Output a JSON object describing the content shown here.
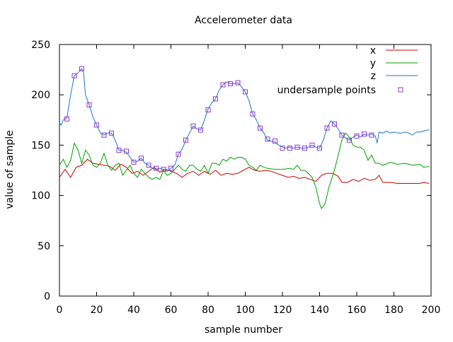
{
  "chart_data": {
    "type": "line",
    "title": "Accelerometer data",
    "xlabel": "sample number",
    "ylabel": "value of sample",
    "xlim": [
      0,
      200
    ],
    "ylim": [
      0,
      250
    ],
    "xticks": [
      "0",
      "20",
      "40",
      "60",
      "80",
      "100",
      "120",
      "140",
      "160",
      "180",
      "200"
    ],
    "yticks": [
      "0",
      "50",
      "100",
      "150",
      "200",
      "250"
    ],
    "grid": false,
    "legend_position": "top-right",
    "series": [
      {
        "name": "x",
        "kind": "line",
        "color": "#cc0000",
        "points": [
          [
            0,
            118
          ],
          [
            3,
            126
          ],
          [
            6,
            118
          ],
          [
            9,
            128
          ],
          [
            12,
            130
          ],
          [
            15,
            136
          ],
          [
            18,
            132
          ],
          [
            21,
            131
          ],
          [
            24,
            130
          ],
          [
            27,
            129
          ],
          [
            30,
            125
          ],
          [
            33,
            131
          ],
          [
            36,
            128
          ],
          [
            39,
            122
          ],
          [
            42,
            124
          ],
          [
            45,
            120
          ],
          [
            48,
            124
          ],
          [
            51,
            128
          ],
          [
            54,
            123
          ],
          [
            57,
            126
          ],
          [
            60,
            124
          ],
          [
            63,
            122
          ],
          [
            66,
            118
          ],
          [
            69,
            122
          ],
          [
            72,
            124
          ],
          [
            75,
            120
          ],
          [
            78,
            124
          ],
          [
            81,
            121
          ],
          [
            84,
            125
          ],
          [
            87,
            120
          ],
          [
            90,
            122
          ],
          [
            93,
            121
          ],
          [
            96,
            122
          ],
          [
            99,
            125
          ],
          [
            102,
            128
          ],
          [
            105,
            125
          ],
          [
            108,
            124
          ],
          [
            111,
            125
          ],
          [
            114,
            124
          ],
          [
            117,
            122
          ],
          [
            120,
            120
          ],
          [
            123,
            118
          ],
          [
            126,
            119
          ],
          [
            129,
            117
          ],
          [
            132,
            118
          ],
          [
            135,
            116
          ],
          [
            138,
            114
          ],
          [
            141,
            120
          ],
          [
            144,
            122
          ],
          [
            147,
            122
          ],
          [
            150,
            119
          ],
          [
            152,
            113
          ],
          [
            155,
            113
          ],
          [
            158,
            116
          ],
          [
            161,
            114
          ],
          [
            164,
            117
          ],
          [
            167,
            115
          ],
          [
            170,
            116
          ],
          [
            172,
            120
          ],
          [
            174,
            113
          ],
          [
            178,
            113
          ],
          [
            182,
            112
          ],
          [
            186,
            112
          ],
          [
            190,
            112
          ],
          [
            194,
            112
          ],
          [
            196,
            113
          ],
          [
            199,
            112
          ]
        ]
      },
      {
        "name": "y",
        "kind": "line",
        "color": "#00a000",
        "points": [
          [
            0,
            130
          ],
          [
            2,
            136
          ],
          [
            4,
            128
          ],
          [
            6,
            135
          ],
          [
            8,
            152
          ],
          [
            10,
            145
          ],
          [
            12,
            132
          ],
          [
            14,
            145
          ],
          [
            16,
            140
          ],
          [
            18,
            130
          ],
          [
            20,
            128
          ],
          [
            22,
            132
          ],
          [
            24,
            142
          ],
          [
            26,
            130
          ],
          [
            28,
            125
          ],
          [
            30,
            130
          ],
          [
            32,
            132
          ],
          [
            34,
            120
          ],
          [
            36,
            125
          ],
          [
            38,
            130
          ],
          [
            40,
            122
          ],
          [
            42,
            118
          ],
          [
            44,
            126
          ],
          [
            46,
            122
          ],
          [
            48,
            118
          ],
          [
            50,
            116
          ],
          [
            52,
            118
          ],
          [
            54,
            116
          ],
          [
            56,
            125
          ],
          [
            58,
            120
          ],
          [
            60,
            122
          ],
          [
            62,
            126
          ],
          [
            64,
            130
          ],
          [
            66,
            126
          ],
          [
            68,
            124
          ],
          [
            70,
            130
          ],
          [
            72,
            130
          ],
          [
            74,
            126
          ],
          [
            76,
            124
          ],
          [
            78,
            130
          ],
          [
            80,
            122
          ],
          [
            82,
            132
          ],
          [
            84,
            132
          ],
          [
            86,
            130
          ],
          [
            88,
            136
          ],
          [
            90,
            134
          ],
          [
            92,
            138
          ],
          [
            94,
            136
          ],
          [
            96,
            138
          ],
          [
            98,
            138
          ],
          [
            100,
            136
          ],
          [
            102,
            130
          ],
          [
            104,
            128
          ],
          [
            106,
            125
          ],
          [
            108,
            130
          ],
          [
            110,
            128
          ],
          [
            112,
            127
          ],
          [
            116,
            126
          ],
          [
            120,
            126
          ],
          [
            124,
            127
          ],
          [
            126,
            126
          ],
          [
            128,
            130
          ],
          [
            130,
            125
          ],
          [
            132,
            125
          ],
          [
            134,
            122
          ],
          [
            136,
            118
          ],
          [
            138,
            108
          ],
          [
            140,
            92
          ],
          [
            141,
            87
          ],
          [
            143,
            92
          ],
          [
            145,
            108
          ],
          [
            148,
            125
          ],
          [
            150,
            140
          ],
          [
            152,
            155
          ],
          [
            154,
            162
          ],
          [
            156,
            158
          ],
          [
            158,
            150
          ],
          [
            160,
            148
          ],
          [
            162,
            148
          ],
          [
            164,
            145
          ],
          [
            166,
            135
          ],
          [
            168,
            140
          ],
          [
            170,
            132
          ],
          [
            172,
            132
          ],
          [
            174,
            130
          ],
          [
            178,
            133
          ],
          [
            182,
            131
          ],
          [
            186,
            132
          ],
          [
            190,
            130
          ],
          [
            194,
            131
          ],
          [
            196,
            128
          ],
          [
            199,
            129
          ]
        ]
      },
      {
        "name": "z",
        "kind": "line",
        "color": "#1a75d1",
        "points": [
          [
            0,
            172
          ],
          [
            1,
            170
          ],
          [
            2,
            175
          ],
          [
            4,
            177
          ],
          [
            6,
            200
          ],
          [
            8,
            219
          ],
          [
            10,
            222
          ],
          [
            12,
            226
          ],
          [
            13,
            222
          ],
          [
            14,
            200
          ],
          [
            16,
            190
          ],
          [
            18,
            178
          ],
          [
            20,
            170
          ],
          [
            22,
            162
          ],
          [
            24,
            160
          ],
          [
            26,
            162
          ],
          [
            28,
            162
          ],
          [
            30,
            155
          ],
          [
            32,
            145
          ],
          [
            34,
            145
          ],
          [
            36,
            143
          ],
          [
            38,
            138
          ],
          [
            40,
            133
          ],
          [
            42,
            134
          ],
          [
            44,
            137
          ],
          [
            46,
            132
          ],
          [
            48,
            130
          ],
          [
            50,
            127
          ],
          [
            52,
            126
          ],
          [
            54,
            127
          ],
          [
            56,
            126
          ],
          [
            58,
            124
          ],
          [
            60,
            127
          ],
          [
            62,
            130
          ],
          [
            64,
            141
          ],
          [
            66,
            146
          ],
          [
            68,
            155
          ],
          [
            70,
            162
          ],
          [
            72,
            169
          ],
          [
            74,
            166
          ],
          [
            76,
            165
          ],
          [
            78,
            175
          ],
          [
            80,
            186
          ],
          [
            82,
            192
          ],
          [
            84,
            196
          ],
          [
            86,
            205
          ],
          [
            88,
            210
          ],
          [
            90,
            213
          ],
          [
            92,
            211
          ],
          [
            94,
            211
          ],
          [
            96,
            212
          ],
          [
            98,
            208
          ],
          [
            100,
            203
          ],
          [
            102,
            194
          ],
          [
            104,
            181
          ],
          [
            106,
            175
          ],
          [
            108,
            167
          ],
          [
            110,
            162
          ],
          [
            112,
            155
          ],
          [
            114,
            154
          ],
          [
            116,
            153
          ],
          [
            118,
            150
          ],
          [
            120,
            148
          ],
          [
            122,
            147
          ],
          [
            124,
            148
          ],
          [
            126,
            147
          ],
          [
            128,
            148
          ],
          [
            130,
            147
          ],
          [
            132,
            147
          ],
          [
            134,
            148
          ],
          [
            136,
            150
          ],
          [
            138,
            148
          ],
          [
            140,
            147
          ],
          [
            142,
            155
          ],
          [
            144,
            167
          ],
          [
            146,
            174
          ],
          [
            148,
            171
          ],
          [
            150,
            166
          ],
          [
            152,
            160
          ],
          [
            154,
            157
          ],
          [
            156,
            155
          ],
          [
            158,
            158
          ],
          [
            160,
            160
          ],
          [
            162,
            158
          ],
          [
            164,
            161
          ],
          [
            166,
            160
          ],
          [
            168,
            161
          ],
          [
            170,
            159
          ],
          [
            171,
            152
          ],
          [
            172,
            163
          ],
          [
            174,
            162
          ],
          [
            176,
            164
          ],
          [
            178,
            162
          ],
          [
            180,
            163
          ],
          [
            182,
            162
          ],
          [
            184,
            162
          ],
          [
            186,
            163
          ],
          [
            188,
            162
          ],
          [
            190,
            160
          ],
          [
            192,
            163
          ],
          [
            194,
            163
          ],
          [
            196,
            164
          ],
          [
            198,
            165
          ],
          [
            199,
            165
          ]
        ]
      },
      {
        "name": "undersample points",
        "kind": "points",
        "color": "#9933cc",
        "points": [
          [
            4,
            176
          ],
          [
            8,
            219
          ],
          [
            12,
            226
          ],
          [
            16,
            190
          ],
          [
            20,
            170
          ],
          [
            24,
            160
          ],
          [
            28,
            162
          ],
          [
            32,
            145
          ],
          [
            36,
            144
          ],
          [
            40,
            133
          ],
          [
            44,
            137
          ],
          [
            48,
            130
          ],
          [
            52,
            127
          ],
          [
            56,
            126
          ],
          [
            60,
            127
          ],
          [
            64,
            141
          ],
          [
            68,
            155
          ],
          [
            72,
            169
          ],
          [
            76,
            165
          ],
          [
            80,
            185
          ],
          [
            84,
            196
          ],
          [
            88,
            210
          ],
          [
            92,
            211
          ],
          [
            96,
            212
          ],
          [
            100,
            203
          ],
          [
            104,
            181
          ],
          [
            108,
            167
          ],
          [
            112,
            156
          ],
          [
            116,
            154
          ],
          [
            120,
            147
          ],
          [
            124,
            147
          ],
          [
            128,
            148
          ],
          [
            132,
            147
          ],
          [
            136,
            150
          ],
          [
            140,
            147
          ],
          [
            144,
            167
          ],
          [
            148,
            171
          ],
          [
            152,
            160
          ],
          [
            156,
            155
          ],
          [
            160,
            159
          ],
          [
            164,
            161
          ],
          [
            168,
            160
          ]
        ]
      }
    ]
  }
}
